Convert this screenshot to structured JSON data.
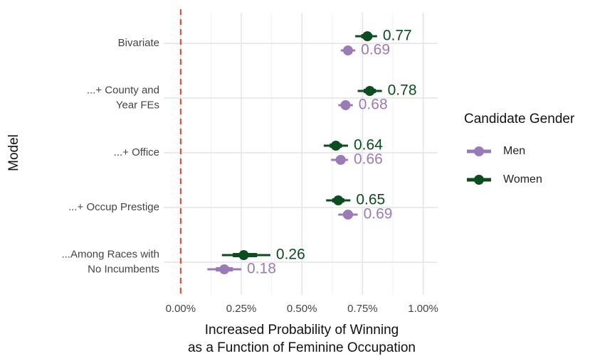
{
  "chart_data": {
    "type": "coefficient",
    "x_label": [
      "Increased Probability of Winning",
      "as a Function of Feminine Occupation"
    ],
    "y_label": "Model",
    "categories": [
      [
        "Bivariate"
      ],
      [
        "...+ County and",
        "Year FEs"
      ],
      [
        "...+ Office"
      ],
      [
        "...+ Occup Prestige"
      ],
      [
        "...Among Races with",
        "No Incumbents"
      ]
    ],
    "series": [
      {
        "name": "Men",
        "color": "#9b7bb5",
        "values": [
          0.69,
          0.68,
          0.66,
          0.69,
          0.18
        ],
        "lower": [
          0.66,
          0.65,
          0.62,
          0.65,
          0.11
        ],
        "upper": [
          0.72,
          0.71,
          0.69,
          0.73,
          0.25
        ]
      },
      {
        "name": "Women",
        "color": "#0b4d1e",
        "values": [
          0.77,
          0.78,
          0.64,
          0.65,
          0.26
        ],
        "lower": [
          0.72,
          0.73,
          0.59,
          0.6,
          0.17
        ],
        "upper": [
          0.81,
          0.83,
          0.69,
          0.7,
          0.37
        ]
      }
    ],
    "xlim": [
      -0.07,
      1.06
    ],
    "xticks": [
      {
        "value": 0,
        "label": "0.00%"
      },
      {
        "value": 0.25,
        "label": "0.25%"
      },
      {
        "value": 0.5,
        "label": "0.50%"
      },
      {
        "value": 0.75,
        "label": "0.75%"
      },
      {
        "value": 1,
        "label": "1.00%"
      }
    ],
    "reference_line": {
      "value": 0,
      "color": "#e8412c"
    },
    "legend_title": "Candidate Gender",
    "legend": "right",
    "grid": true
  }
}
